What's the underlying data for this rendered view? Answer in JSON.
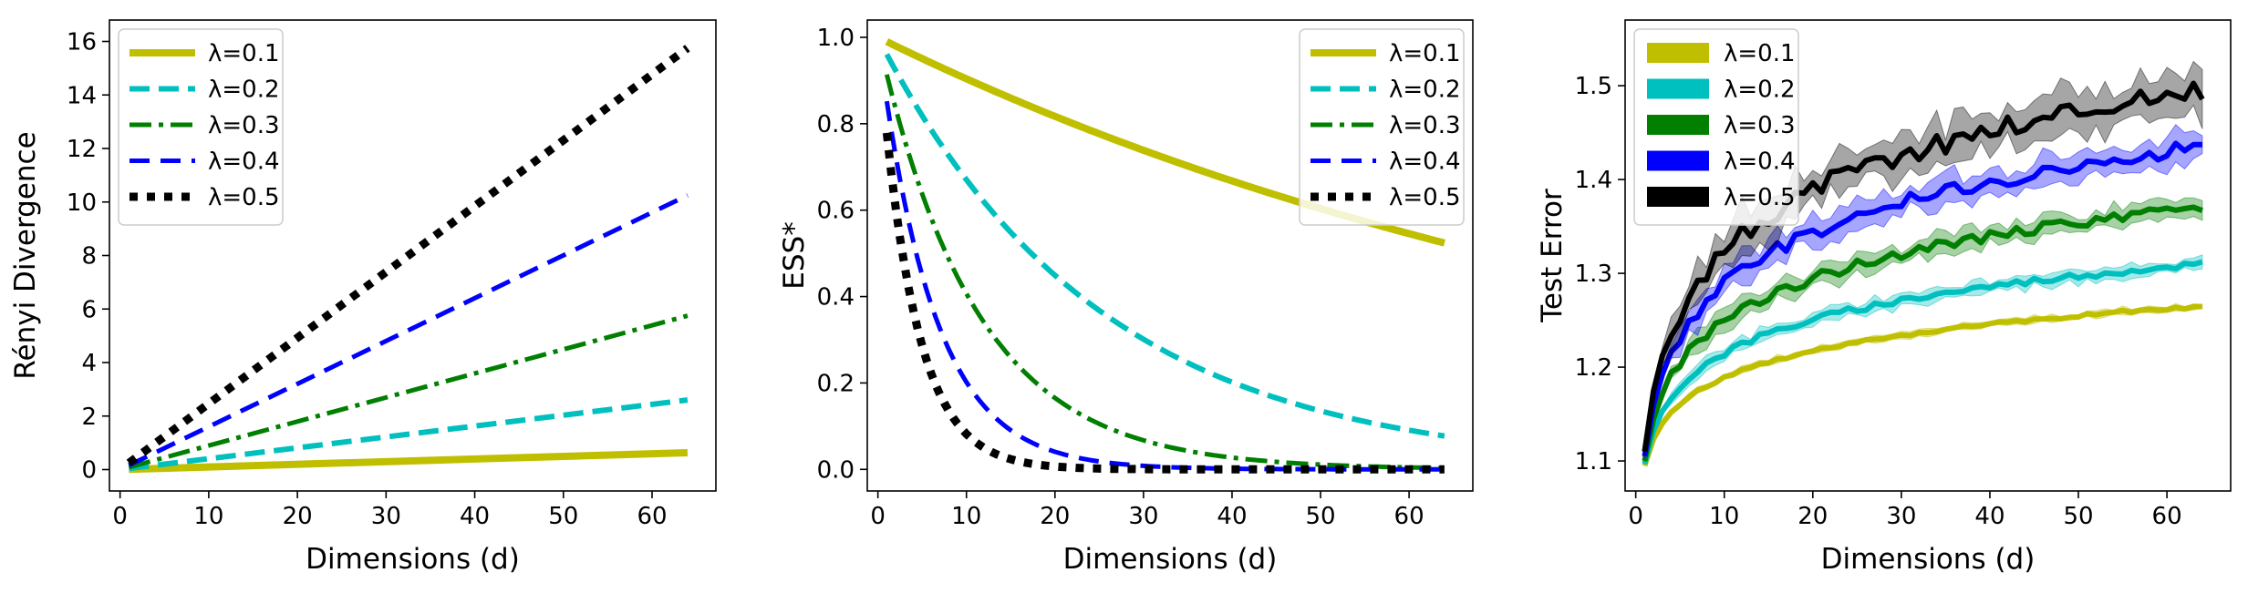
{
  "colors": {
    "0.1": "#bfbf00",
    "0.2": "#00bfbf",
    "0.3": "#007f00",
    "0.4": "#0000ff",
    "0.5": "#000000"
  },
  "chart_data": [
    {
      "type": "line",
      "title": "",
      "xlabel": "Dimensions (d)",
      "ylabel": "Rényi Divergence",
      "xlim": [
        -1.2,
        67.2
      ],
      "ylim": [
        -0.8,
        16.8
      ],
      "xticks": [
        0,
        10,
        20,
        30,
        40,
        50,
        60
      ],
      "yticks": [
        0,
        2,
        4,
        6,
        8,
        10,
        12,
        14,
        16
      ],
      "grid": false,
      "legend_position": "top-left",
      "series": [
        {
          "name": "λ=0.1",
          "style": "solid",
          "points": [
            [
              1,
              0.01
            ],
            [
              64,
              0.63
            ]
          ]
        },
        {
          "name": "λ=0.2",
          "style": "dashed",
          "points": [
            [
              1,
              0.04
            ],
            [
              64,
              2.6
            ]
          ]
        },
        {
          "name": "λ=0.3",
          "style": "dashdot",
          "points": [
            [
              1,
              0.09
            ],
            [
              64,
              5.75
            ]
          ]
        },
        {
          "name": "λ=0.4",
          "style": "dashed-long",
          "points": [
            [
              1,
              0.16
            ],
            [
              64,
              10.25
            ]
          ]
        },
        {
          "name": "λ=0.5",
          "style": "dotted",
          "points": [
            [
              1,
              0.25
            ],
            [
              64,
              15.75
            ]
          ]
        }
      ]
    },
    {
      "type": "line",
      "title": "",
      "xlabel": "Dimensions (d)",
      "ylabel": "ESS*",
      "xlim": [
        -1.2,
        67.2
      ],
      "ylim": [
        -0.05,
        1.04
      ],
      "xticks": [
        0,
        10,
        20,
        30,
        40,
        50,
        60
      ],
      "yticks": [
        0.0,
        0.2,
        0.4,
        0.6,
        0.8,
        1.0
      ],
      "ytick_labels": [
        "0.0",
        "0.2",
        "0.4",
        "0.6",
        "0.8",
        "1.0"
      ],
      "grid": false,
      "legend_position": "top-right",
      "series": [
        {
          "name": "λ=0.1",
          "style": "solid",
          "decay": 0.0101
        },
        {
          "name": "λ=0.2",
          "style": "dashed",
          "decay": 0.04
        },
        {
          "name": "λ=0.3",
          "style": "dashdot",
          "decay": 0.09
        },
        {
          "name": "λ=0.4",
          "style": "dashed-long",
          "decay": 0.16
        },
        {
          "name": "λ=0.5",
          "style": "dotted",
          "decay": 0.25
        }
      ]
    },
    {
      "type": "line",
      "title": "",
      "xlabel": "Dimensions (d)",
      "ylabel": "Test Error",
      "xlim": [
        -1.2,
        67.2
      ],
      "ylim": [
        1.068,
        1.57
      ],
      "xticks": [
        0,
        10,
        20,
        30,
        40,
        50,
        60
      ],
      "yticks": [
        1.1,
        1.2,
        1.3,
        1.4,
        1.5
      ],
      "ytick_labels": [
        "1.1",
        "1.2",
        "1.3",
        "1.4",
        "1.5"
      ],
      "grid": false,
      "legend_position": "top-left",
      "shaded_band": true,
      "series": [
        {
          "name": "λ=0.1",
          "style": "solid",
          "y_at_1": 1.095,
          "y_at_64": 1.265,
          "band": 0.004
        },
        {
          "name": "λ=0.2",
          "style": "solid",
          "y_at_1": 1.097,
          "y_at_64": 1.31,
          "band": 0.008
        },
        {
          "name": "λ=0.3",
          "style": "solid",
          "y_at_1": 1.1,
          "y_at_64": 1.37,
          "band": 0.012
        },
        {
          "name": "λ=0.4",
          "style": "solid",
          "y_at_1": 1.105,
          "y_at_64": 1.435,
          "band": 0.018
        },
        {
          "name": "λ=0.5",
          "style": "solid",
          "y_at_1": 1.11,
          "y_at_64": 1.497,
          "band": 0.028
        }
      ]
    }
  ]
}
